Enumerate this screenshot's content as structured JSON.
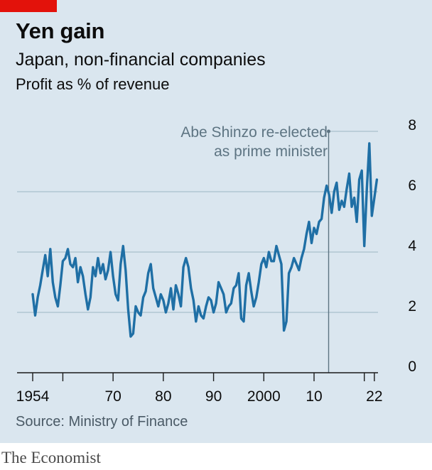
{
  "header": {
    "title": "Yen gain",
    "subtitle": "Japan, non-financial companies",
    "units": "Profit as % of revenue"
  },
  "footer": {
    "source": "Source: Ministry of Finance",
    "brand": "The Economist"
  },
  "colors": {
    "background": "#dae6ef",
    "line": "#1f6fa5",
    "grid": "#a9bfcc",
    "annotation": "#5d7482",
    "brand_red": "#e3120b"
  },
  "chart_data": {
    "type": "line",
    "title": "Yen gain",
    "subtitle": "Japan, non-financial companies",
    "ylabel": "Profit as % of revenue",
    "ylim": [
      0,
      8
    ],
    "xlim": [
      1954,
      2024
    ],
    "y_ticks": [
      0,
      2,
      4,
      6,
      8
    ],
    "x_ticks": [
      {
        "value": 1954,
        "label": "1954"
      },
      {
        "value": 1960,
        "label": ""
      },
      {
        "value": 1970,
        "label": "70"
      },
      {
        "value": 1980,
        "label": "80"
      },
      {
        "value": 1990,
        "label": "90"
      },
      {
        "value": 2000,
        "label": "2000"
      },
      {
        "value": 2010,
        "label": "10"
      },
      {
        "value": 2020,
        "label": ""
      },
      {
        "value": 2022,
        "label": "22"
      }
    ],
    "grid": true,
    "annotation": {
      "x": 2012.9,
      "lines": [
        "Abe Shinzo re-elected",
        "as prime minister"
      ]
    },
    "series": [
      {
        "x": [
          1954.0,
          1954.5,
          1955.0,
          1955.5,
          1956.0,
          1956.5,
          1957.0,
          1957.5,
          1958.0,
          1958.5,
          1959.0,
          1959.5,
          1960.0,
          1960.5,
          1961.0,
          1961.5,
          1962.0,
          1962.5,
          1963.0,
          1963.5,
          1964.0,
          1964.5,
          1965.0,
          1965.5,
          1966.0,
          1966.5,
          1967.0,
          1967.5,
          1968.0,
          1968.5,
          1969.0,
          1969.5,
          1970.0,
          1970.5,
          1971.0,
          1971.5,
          1972.0,
          1972.5,
          1973.0,
          1973.5,
          1974.0,
          1974.5,
          1975.0,
          1975.5,
          1976.0,
          1976.5,
          1977.0,
          1977.5,
          1978.0,
          1978.5,
          1979.0,
          1979.5,
          1980.0,
          1980.5,
          1981.0,
          1981.5,
          1982.0,
          1982.5,
          1983.0,
          1983.5,
          1984.0,
          1984.5,
          1985.0,
          1985.5,
          1986.0,
          1986.5,
          1987.0,
          1987.5,
          1988.0,
          1988.5,
          1989.0,
          1989.5,
          1990.0,
          1990.5,
          1991.0,
          1991.5,
          1992.0,
          1992.5,
          1993.0,
          1993.5,
          1994.0,
          1994.5,
          1995.0,
          1995.5,
          1996.0,
          1996.5,
          1997.0,
          1997.5,
          1998.0,
          1998.5,
          1999.0,
          1999.5,
          2000.0,
          2000.5,
          2001.0,
          2001.5,
          2002.0,
          2002.5,
          2003.0,
          2003.5,
          2004.0,
          2004.5,
          2005.0,
          2005.5,
          2006.0,
          2006.5,
          2007.0,
          2007.5,
          2008.0,
          2008.5,
          2009.0,
          2009.5,
          2010.0,
          2010.5,
          2011.0,
          2011.5,
          2012.0,
          2012.5,
          2013.0,
          2013.5,
          2014.0,
          2014.5,
          2015.0,
          2015.5,
          2016.0,
          2016.5,
          2017.0,
          2017.5,
          2018.0,
          2018.5,
          2019.0,
          2019.5,
          2020.0,
          2020.5,
          2021.0,
          2021.5,
          2022.0,
          2022.5
        ],
        "values": [
          2.6,
          1.9,
          2.5,
          2.9,
          3.4,
          3.9,
          3.2,
          4.1,
          3.0,
          2.5,
          2.2,
          2.9,
          3.7,
          3.8,
          4.1,
          3.6,
          3.5,
          3.8,
          3.0,
          3.5,
          3.2,
          2.6,
          2.1,
          2.5,
          3.5,
          3.2,
          3.8,
          3.3,
          3.6,
          3.1,
          3.4,
          4.0,
          3.2,
          2.6,
          2.4,
          3.6,
          4.2,
          3.4,
          2.1,
          1.2,
          1.3,
          2.2,
          2.0,
          1.9,
          2.5,
          2.7,
          3.3,
          3.6,
          2.8,
          2.5,
          2.2,
          2.6,
          2.4,
          2.0,
          2.3,
          2.8,
          2.1,
          2.9,
          2.6,
          2.2,
          3.5,
          3.8,
          3.5,
          2.8,
          2.4,
          1.7,
          2.2,
          1.9,
          1.8,
          2.2,
          2.5,
          2.4,
          2.0,
          2.3,
          3.0,
          2.8,
          2.6,
          2.0,
          2.2,
          2.3,
          2.8,
          2.9,
          3.3,
          1.8,
          1.7,
          2.9,
          3.3,
          2.7,
          2.2,
          2.5,
          3.0,
          3.6,
          3.8,
          3.5,
          4.0,
          3.7,
          3.7,
          4.2,
          3.9,
          3.6,
          1.4,
          1.7,
          3.3,
          3.5,
          3.8,
          3.6,
          3.4,
          3.8,
          4.1,
          4.6,
          5.0,
          4.3,
          4.8,
          4.6,
          5.0,
          5.1,
          5.8,
          6.2,
          5.9,
          5.3,
          6.0,
          6.3,
          5.4,
          5.7,
          5.5,
          6.1,
          6.6,
          5.5,
          5.8,
          5.0,
          6.4,
          6.7,
          4.2,
          6.1,
          7.6,
          5.2,
          5.8,
          6.4
        ]
      }
    ]
  }
}
